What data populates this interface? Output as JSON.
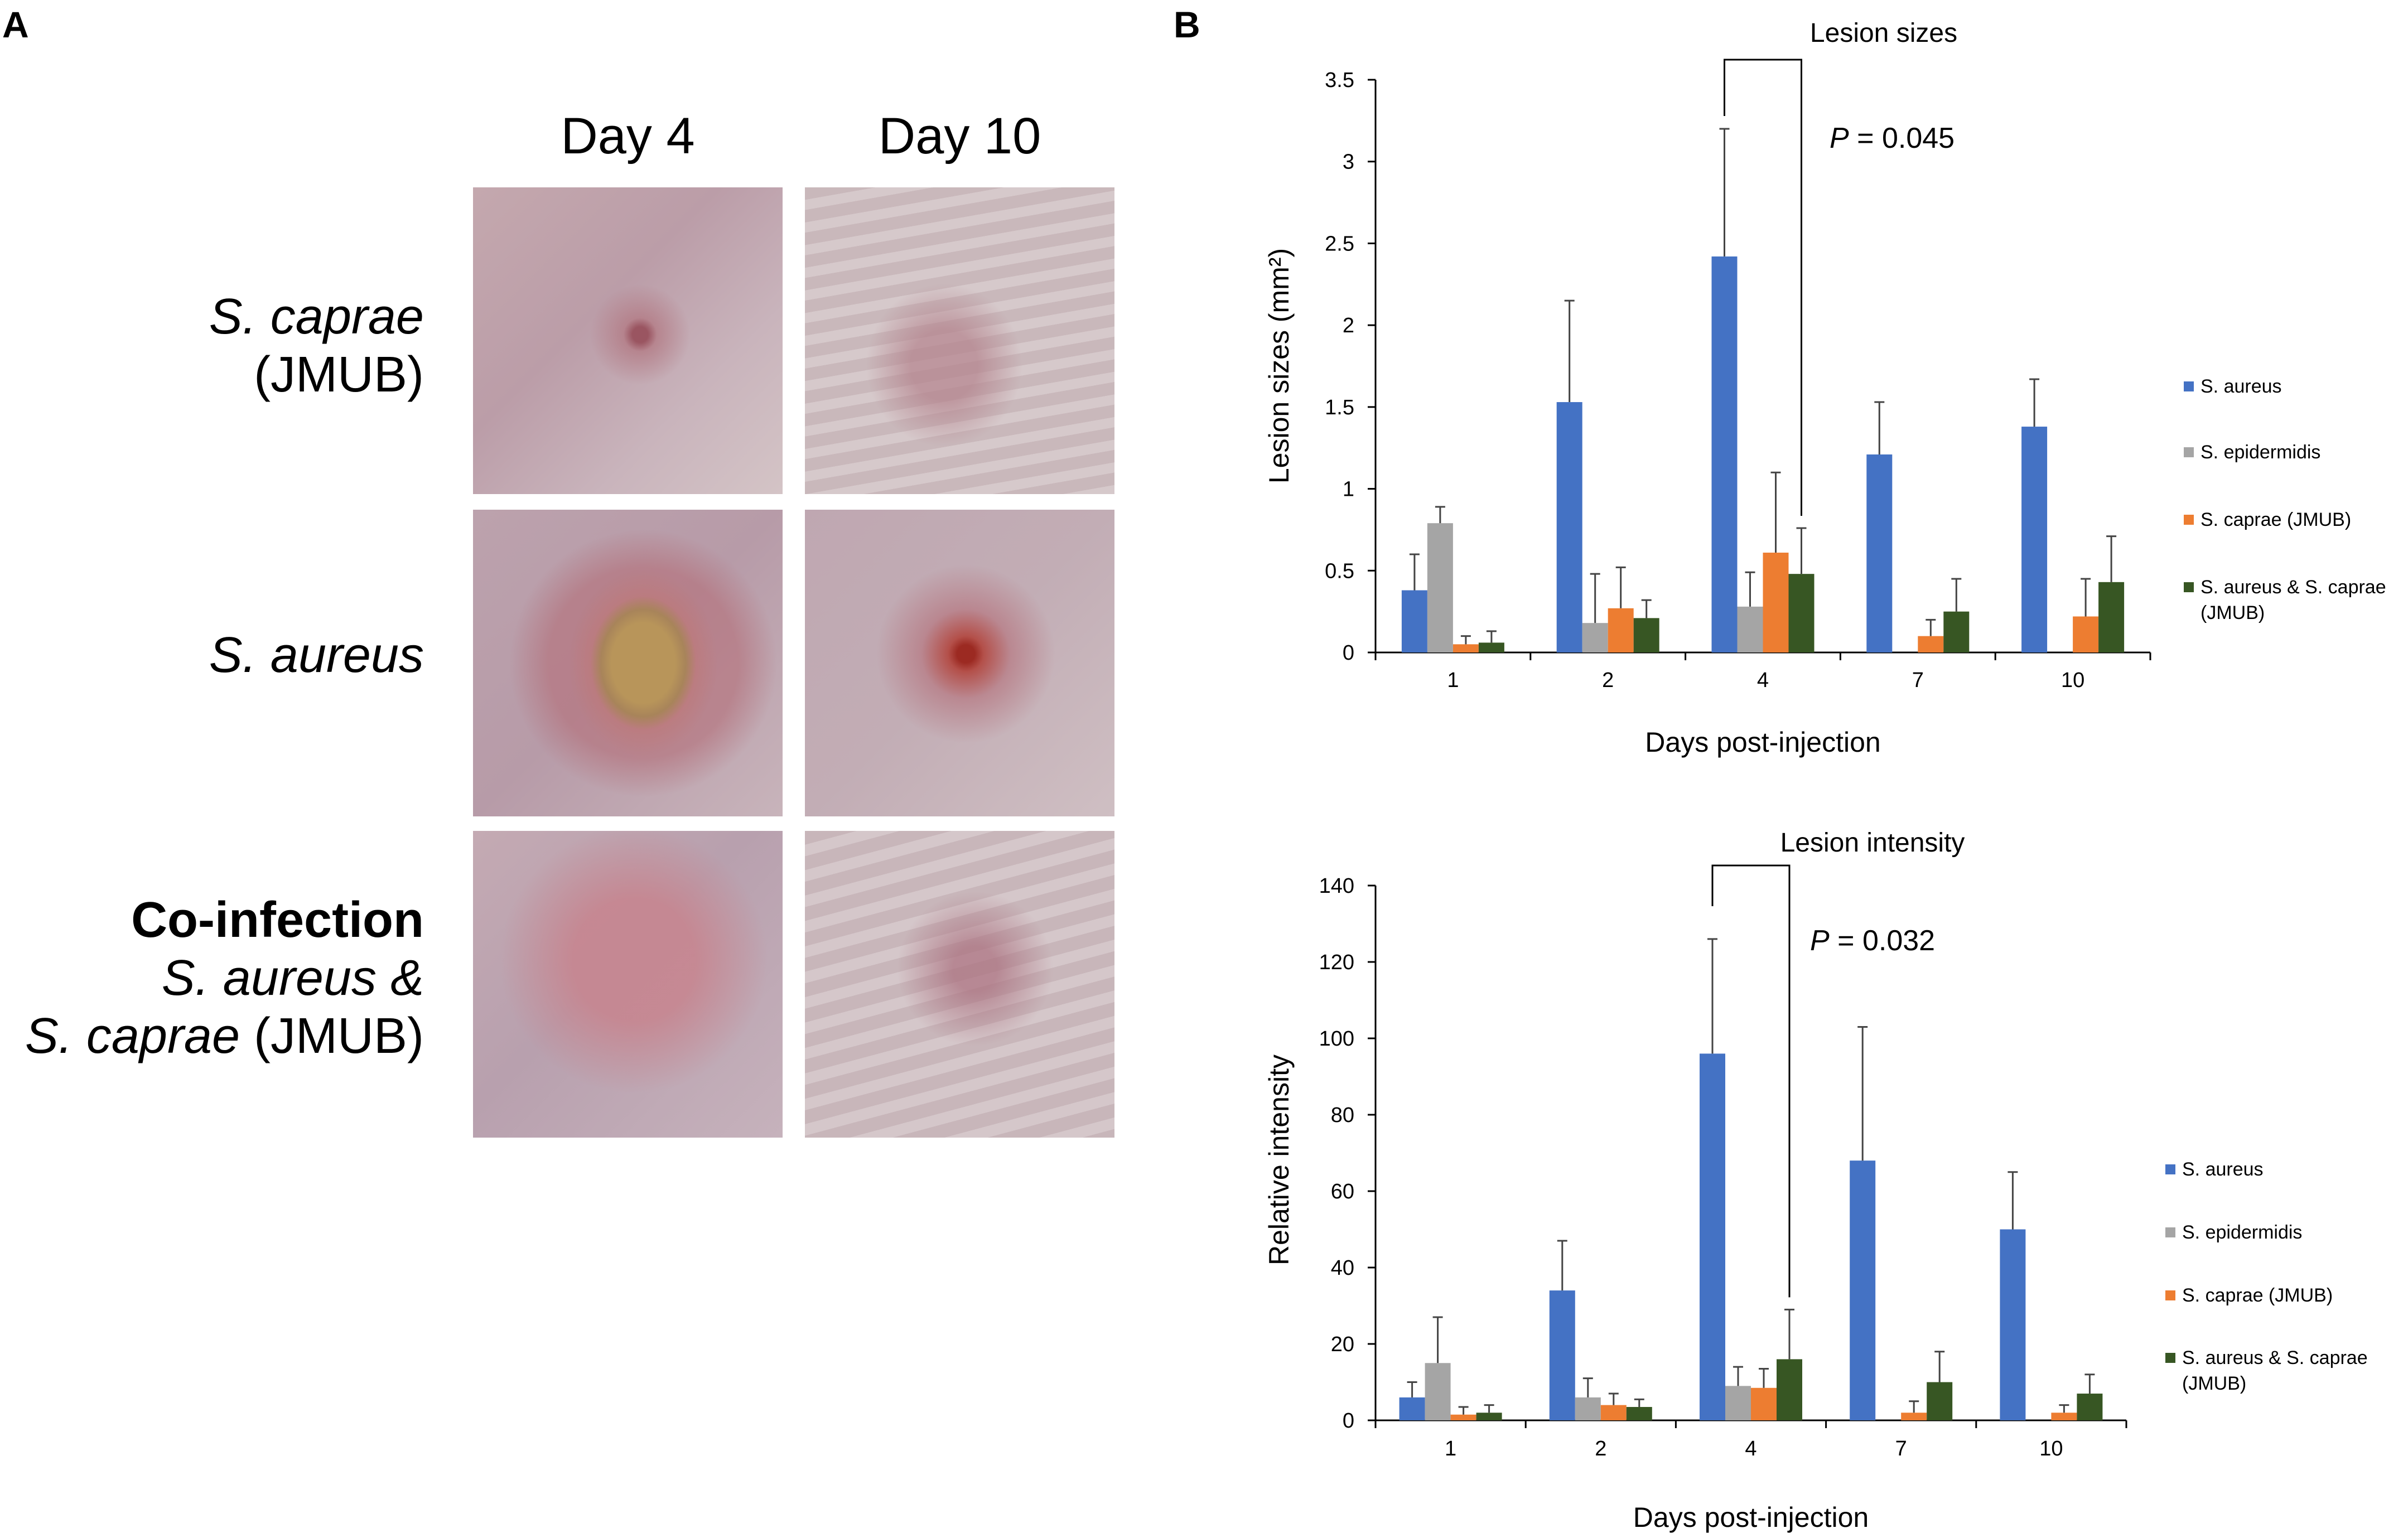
{
  "panel_a": {
    "letter": "A",
    "columns": [
      "Day 4",
      "Day 10"
    ],
    "rows": [
      {
        "line1_italic": "S. caprae",
        "line2": "(JMUB)"
      },
      {
        "line1_italic": "S. aureus"
      },
      {
        "line1_bold": "Co-infection",
        "line2_italic": "S. aureus &",
        "line3_italic": "S. caprae",
        "line3_plain": " (JMUB)"
      }
    ]
  },
  "panel_b": {
    "letter": "B"
  },
  "colors": {
    "S. aureus": "#4472C4",
    "S. epidermidis": "#A5A5A5",
    "S. caprae (JMUB)": "#ED7D31",
    "S. aureus & S. caprae (JMUB)": "#375623"
  },
  "chart_data": [
    {
      "type": "bar",
      "title": "Lesion sizes",
      "xlabel": "Days post-injection",
      "ylabel": "Lesion sizes (mm²)",
      "ylim": [
        0,
        3.5
      ],
      "yticks": [
        "0",
        "0.5",
        "1",
        "1.5",
        "2",
        "2.5",
        "3",
        "3.5"
      ],
      "categories": [
        "1",
        "2",
        "4",
        "7",
        "10"
      ],
      "series": [
        {
          "name": "S. aureus",
          "values": [
            0.38,
            1.53,
            2.42,
            1.21,
            1.38
          ],
          "errors": [
            0.22,
            0.62,
            0.78,
            0.32,
            0.29
          ]
        },
        {
          "name": "S. epidermidis",
          "values": [
            0.79,
            0.18,
            0.28,
            0,
            0
          ],
          "errors": [
            0.1,
            0.3,
            0.21,
            0,
            0
          ]
        },
        {
          "name": "S. caprae (JMUB)",
          "values": [
            0.05,
            0.27,
            0.61,
            0.1,
            0.22
          ],
          "errors": [
            0.05,
            0.25,
            0.49,
            0.1,
            0.23
          ]
        },
        {
          "name": "S. aureus & S. caprae (JMUB)",
          "values": [
            0.06,
            0.21,
            0.48,
            0.25,
            0.43
          ],
          "errors": [
            0.07,
            0.11,
            0.28,
            0.2,
            0.28
          ]
        }
      ],
      "legend": "right",
      "annotation": {
        "p_italic": "P",
        "p_text": " = 0.045",
        "bracket_category": "4"
      }
    },
    {
      "type": "bar",
      "title": "Lesion intensity",
      "xlabel": "Days post-injection",
      "ylabel": "Relative intensity",
      "ylim": [
        0,
        140
      ],
      "yticks": [
        "0",
        "20",
        "40",
        "60",
        "80",
        "100",
        "120",
        "140"
      ],
      "categories": [
        "1",
        "2",
        "4",
        "7",
        "10"
      ],
      "series": [
        {
          "name": "S. aureus",
          "values": [
            6,
            34,
            96,
            68,
            50
          ],
          "errors": [
            4,
            13,
            30,
            35,
            15
          ]
        },
        {
          "name": "S. epidermidis",
          "values": [
            15,
            6,
            9,
            0,
            0
          ],
          "errors": [
            12,
            5,
            5,
            0,
            0
          ]
        },
        {
          "name": "S. caprae (JMUB)",
          "values": [
            1.5,
            4,
            8.5,
            2,
            2
          ],
          "errors": [
            2,
            3,
            5,
            3,
            2
          ]
        },
        {
          "name": "S. aureus & S. caprae (JMUB)",
          "values": [
            2,
            3.5,
            16,
            10,
            7
          ],
          "errors": [
            2,
            2,
            13,
            8,
            5
          ]
        }
      ],
      "legend": "right",
      "annotation": {
        "p_italic": "P",
        "p_text": " = 0.032",
        "bracket_category": "4"
      }
    }
  ]
}
